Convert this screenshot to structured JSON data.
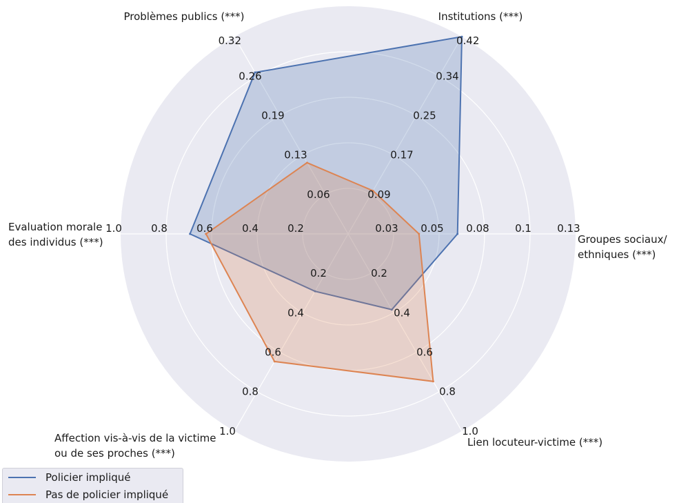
{
  "chart_data": {
    "type": "radar",
    "axes": [
      {
        "label": [
          "Institutions (***)"
        ],
        "ticks": [
          "0.09",
          "0.17",
          "0.25",
          "0.34",
          "0.42"
        ],
        "max": 0.42
      },
      {
        "label": [
          "Groupes sociaux/",
          "ethniques (***)"
        ],
        "ticks": [
          "0.03",
          "0.05",
          "0.08",
          "0.1",
          "0.13"
        ],
        "max": 0.13
      },
      {
        "label": [
          "Lien locuteur-victime (***)"
        ],
        "ticks": [
          "0.2",
          "0.4",
          "0.6",
          "0.8",
          "1.0"
        ],
        "max": 1.0
      },
      {
        "label": [
          "Affection vis-à-vis de la victime",
          "ou de ses proches (***)"
        ],
        "ticks": [
          "0.2",
          "0.4",
          "0.6",
          "0.8",
          "1.0"
        ],
        "max": 1.0
      },
      {
        "label": [
          "Evaluation morale",
          "des individus (***)"
        ],
        "ticks": [
          "0.2",
          "0.4",
          "0.6",
          "0.8",
          "1.0"
        ],
        "max": 1.0
      },
      {
        "label": [
          "Problèmes publics (***)"
        ],
        "ticks": [
          "0.06",
          "0.13",
          "0.19",
          "0.26",
          "0.32"
        ],
        "max": 0.32
      }
    ],
    "series": [
      {
        "name": "Policier impliqué",
        "color": "#4c72b0",
        "values": [
          0.42,
          0.0625,
          0.384,
          0.291,
          0.695,
          0.262
        ]
      },
      {
        "name": "Pas de policier impliqué",
        "color": "#dd8452",
        "values": [
          0.0918,
          0.0405,
          0.748,
          0.647,
          0.625,
          0.1155
        ]
      }
    ],
    "legend_position": "bottom-left",
    "grid": true
  }
}
